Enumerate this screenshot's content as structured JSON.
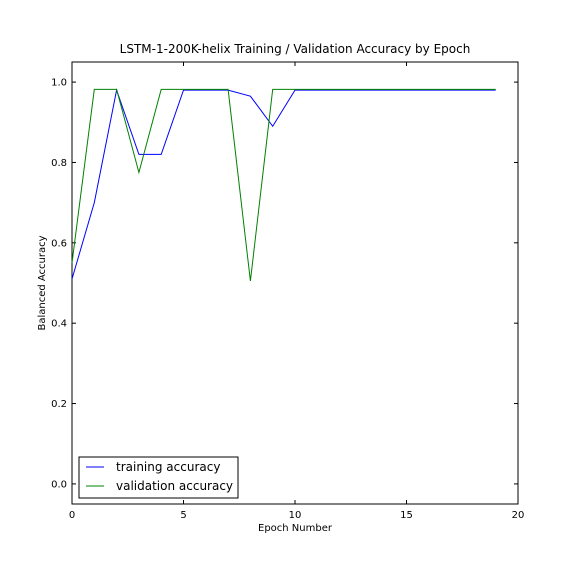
{
  "chart_data": {
    "type": "line",
    "title": "LSTM-1-200K-helix Training / Validation Accuracy by Epoch",
    "xlabel": "Epoch Number",
    "ylabel": "Balanced Accuracy",
    "xlim": [
      0,
      20
    ],
    "ylim": [
      -0.05,
      1.05
    ],
    "xticks": [
      0,
      5,
      10,
      15,
      20
    ],
    "yticks": [
      0.0,
      0.2,
      0.4,
      0.6,
      0.8,
      1.0
    ],
    "xtick_labels": [
      "0",
      "5",
      "10",
      "15",
      "20"
    ],
    "ytick_labels": [
      "0.0",
      "0.2",
      "0.4",
      "0.6",
      "0.8",
      "1.0"
    ],
    "legend_position": "lower-left",
    "x": [
      0,
      1,
      2,
      3,
      4,
      5,
      6,
      7,
      8,
      9,
      10,
      11,
      12,
      13,
      14,
      15,
      16,
      17,
      18,
      19
    ],
    "series": [
      {
        "name": "training accuracy",
        "color": "#0000ff",
        "values": [
          0.51,
          0.7,
          0.98,
          0.82,
          0.82,
          0.98,
          0.98,
          0.98,
          0.965,
          0.89,
          0.98,
          0.98,
          0.98,
          0.98,
          0.98,
          0.98,
          0.98,
          0.98,
          0.98,
          0.98
        ]
      },
      {
        "name": "validation accuracy",
        "color": "#008000",
        "values": [
          0.55,
          0.982,
          0.982,
          0.775,
          0.982,
          0.982,
          0.982,
          0.982,
          0.505,
          0.982,
          0.982,
          0.982,
          0.982,
          0.982,
          0.982,
          0.982,
          0.982,
          0.982,
          0.982,
          0.982
        ]
      }
    ]
  }
}
